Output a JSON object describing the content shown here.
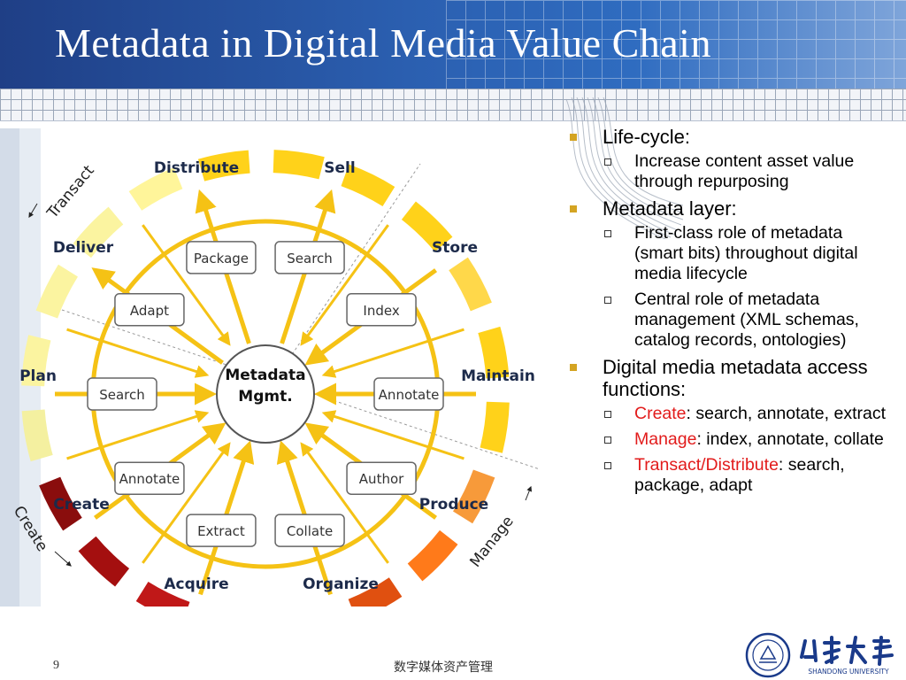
{
  "slide": {
    "title": "Metadata in Digital Media Value Chain",
    "page_number": "9",
    "footer_text": "数字媒体资产管理",
    "logo_caption": "SHANDONG UNIVERSITY"
  },
  "diagram": {
    "center": [
      "Metadata",
      "Mgmt."
    ],
    "stages": [
      "Distribute",
      "Sell",
      "Store",
      "Maintain",
      "Produce",
      "Organize",
      "Acquire",
      "Create",
      "Plan",
      "Deliver"
    ],
    "functions": [
      "Package",
      "Search",
      "Index",
      "Annotate",
      "Author",
      "Collate",
      "Extract",
      "Annotate",
      "Search",
      "Adapt"
    ],
    "phases": [
      "Transact",
      "Manage",
      "Create"
    ],
    "colors": {
      "arrow": "#f5c215",
      "ring_create": "#8a0d0d",
      "ring_manage": "#e05010",
      "ring_transact": "#ffd21a"
    }
  },
  "bullets": [
    {
      "text": "Life-cycle:",
      "sub": [
        {
          "parts": [
            {
              "t": "Increase content asset value through repurposing",
              "c": ""
            }
          ]
        }
      ]
    },
    {
      "text": "Metadata layer:",
      "sub": [
        {
          "parts": [
            {
              "t": "First-class role of metadata (smart bits) throughout digital media lifecycle",
              "c": ""
            }
          ]
        },
        {
          "parts": [
            {
              "t": "Central role of metadata management (XML schemas, catalog records, ontologies)",
              "c": ""
            }
          ]
        }
      ]
    },
    {
      "text": "Digital media metadata access functions:",
      "sub": [
        {
          "parts": [
            {
              "t": "Create",
              "c": "red"
            },
            {
              "t": ": search, annotate, extract",
              "c": ""
            }
          ]
        },
        {
          "parts": [
            {
              "t": "Manage",
              "c": "red"
            },
            {
              "t": ": index, annotate, collate",
              "c": ""
            }
          ]
        },
        {
          "parts": [
            {
              "t": "Transact/Distribute",
              "c": "red"
            },
            {
              "t": ": search, package, adapt",
              "c": ""
            }
          ]
        }
      ]
    }
  ]
}
